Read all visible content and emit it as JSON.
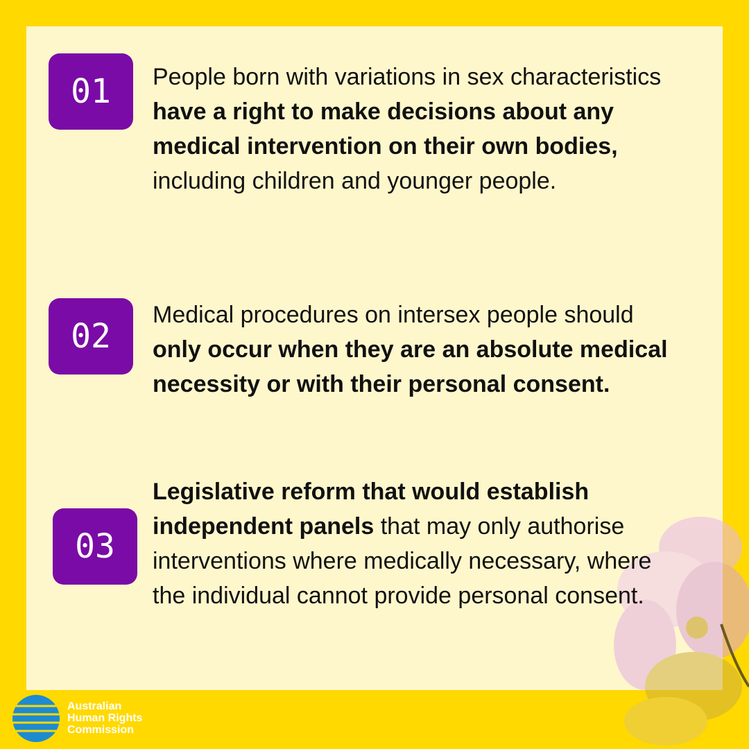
{
  "items": [
    {
      "number": "01",
      "segments": [
        {
          "text": "People born with variations in sex characteristics ",
          "bold": false
        },
        {
          "text": "have a right to make decisions about any medical intervention on their own bodies,",
          "bold": true
        },
        {
          "text": " including children and younger people.",
          "bold": false
        }
      ]
    },
    {
      "number": "02",
      "segments": [
        {
          "text": "Medical procedures on intersex people should ",
          "bold": false
        },
        {
          "text": "only occur when they are an absolute medical necessity or with their personal consent.",
          "bold": true
        }
      ]
    },
    {
      "number": "03",
      "segments": [
        {
          "text": "Legislative reform that would establish independent panels",
          "bold": true
        },
        {
          "text": " that may only authorise interventions where medically necessary, where the individual cannot provide personal consent.",
          "bold": false
        }
      ]
    }
  ],
  "logo": {
    "lines": [
      "Australian",
      "Human Rights",
      "Commission"
    ]
  }
}
